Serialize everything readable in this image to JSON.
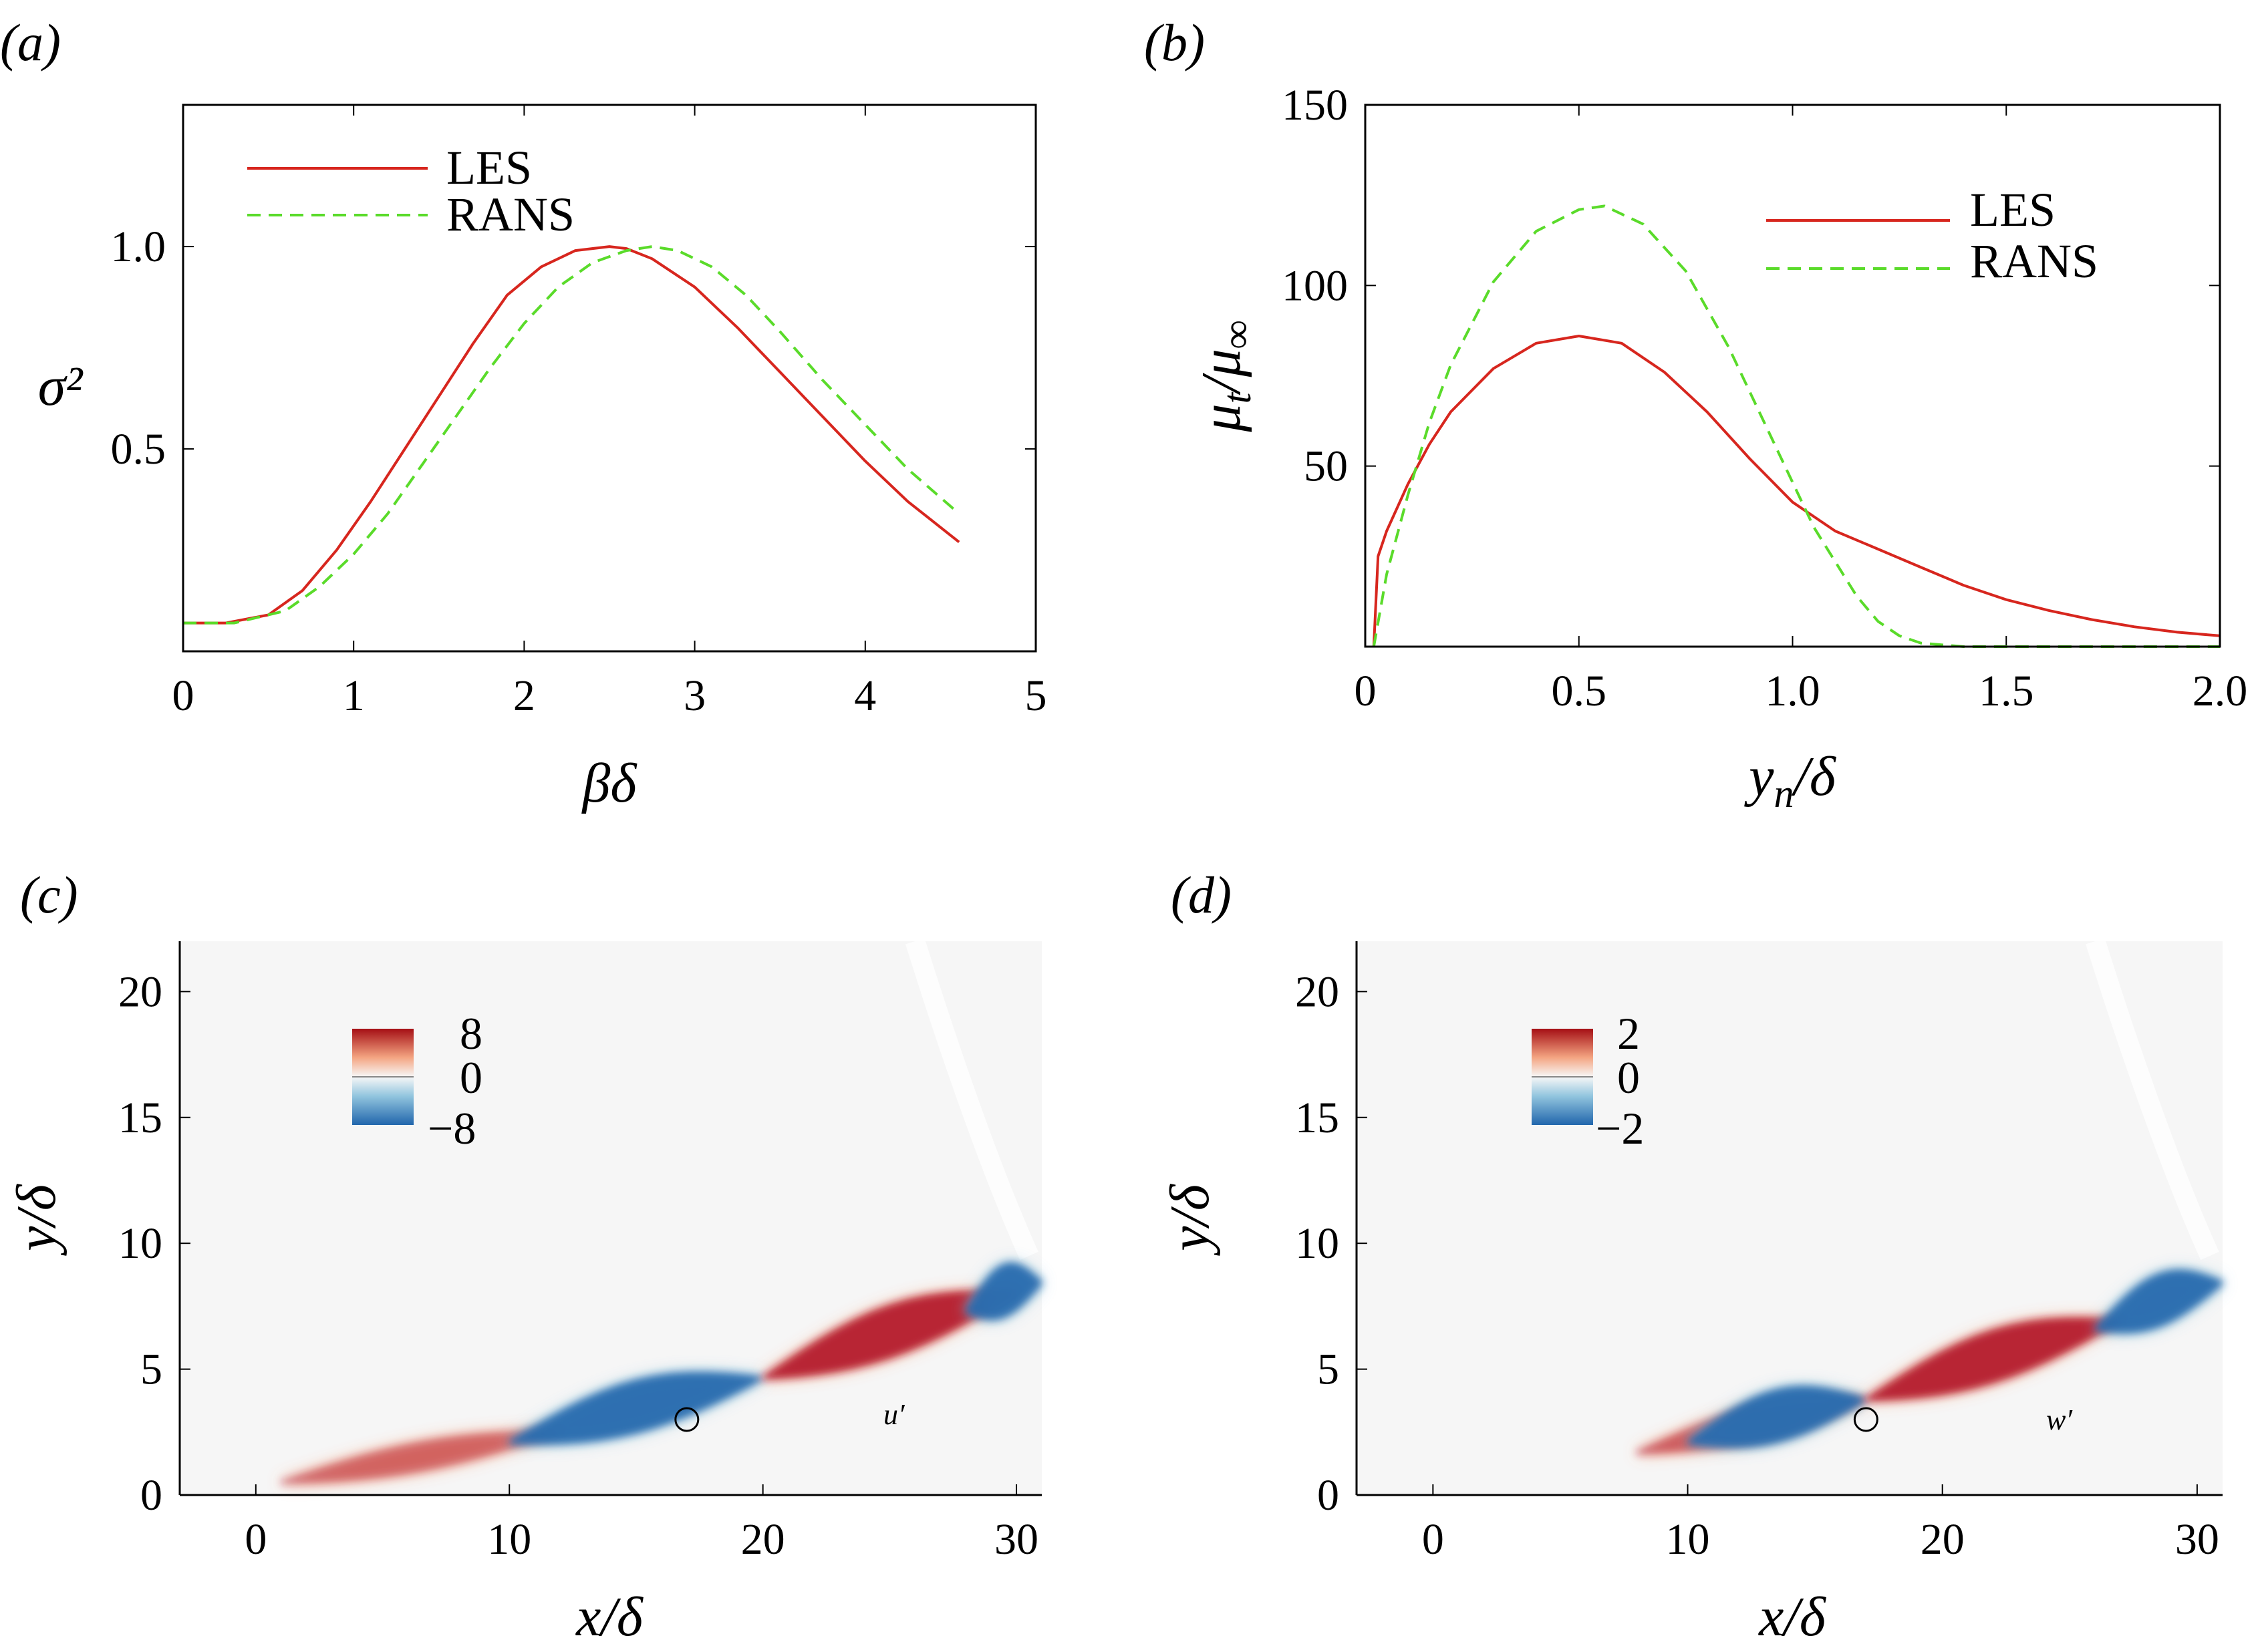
{
  "panel_labels": [
    "(a)",
    "(b)",
    "(c)",
    "(d)"
  ],
  "chart_data": [
    {
      "panel": "(a)",
      "type": "line",
      "xlabel": "βδ",
      "ylabel": "σ²",
      "xlim": [
        0,
        5
      ],
      "ylim": [
        0,
        1.35
      ],
      "xticks": [
        "0",
        "1",
        "2",
        "3",
        "4",
        "5"
      ],
      "yticks": [
        "0.5",
        "1.0"
      ],
      "legend": {
        "placement": "top-left",
        "entries": [
          "LES",
          "RANS"
        ]
      },
      "series": [
        {
          "name": "LES",
          "color": "#d7261e",
          "dash": "solid",
          "x": [
            0,
            0.25,
            0.5,
            0.7,
            0.9,
            1.1,
            1.3,
            1.5,
            1.7,
            1.9,
            2.1,
            2.3,
            2.5,
            2.6,
            2.75,
            3.0,
            3.25,
            3.5,
            3.75,
            4.0,
            4.25,
            4.55
          ],
          "y": [
            0.07,
            0.07,
            0.09,
            0.15,
            0.25,
            0.37,
            0.5,
            0.63,
            0.76,
            0.88,
            0.95,
            0.99,
            1.0,
            0.995,
            0.97,
            0.9,
            0.8,
            0.69,
            0.58,
            0.47,
            0.37,
            0.27
          ]
        },
        {
          "name": "RANS",
          "color": "#5adb2a",
          "dash": "dashed",
          "x": [
            0,
            0.3,
            0.6,
            0.8,
            1.0,
            1.2,
            1.4,
            1.6,
            1.8,
            2.0,
            2.2,
            2.4,
            2.6,
            2.75,
            2.9,
            3.1,
            3.3,
            3.5,
            3.75,
            4.0,
            4.25,
            4.55
          ],
          "y": [
            0.07,
            0.07,
            0.1,
            0.16,
            0.24,
            0.34,
            0.46,
            0.58,
            0.7,
            0.81,
            0.9,
            0.96,
            0.99,
            1.0,
            0.99,
            0.95,
            0.88,
            0.79,
            0.67,
            0.56,
            0.45,
            0.34
          ]
        }
      ]
    },
    {
      "panel": "(b)",
      "type": "line",
      "xlabel": "yₙ/δ",
      "ylabel": "μt/μ∞",
      "xlim": [
        0,
        2.0
      ],
      "ylim": [
        0,
        150
      ],
      "xticks": [
        "0",
        "0.5",
        "1.0",
        "1.5",
        "2.0"
      ],
      "yticks": [
        "50",
        "100",
        "150"
      ],
      "legend": {
        "placement": "top-right",
        "entries": [
          "LES",
          "RANS"
        ]
      },
      "series": [
        {
          "name": "LES",
          "color": "#d7261e",
          "dash": "solid",
          "x": [
            0.02,
            0.03,
            0.05,
            0.1,
            0.15,
            0.2,
            0.3,
            0.4,
            0.5,
            0.6,
            0.7,
            0.8,
            0.9,
            1.0,
            1.1,
            1.2,
            1.3,
            1.4,
            1.5,
            1.6,
            1.7,
            1.8,
            1.9,
            2.0
          ],
          "y": [
            0,
            25,
            32,
            45,
            56,
            65,
            77,
            84,
            86,
            84,
            76,
            65,
            52,
            40,
            32,
            27,
            22,
            17,
            13,
            10,
            7.5,
            5.5,
            4,
            3
          ]
        },
        {
          "name": "RANS",
          "color": "#5adb2a",
          "dash": "dashed",
          "x": [
            0.02,
            0.05,
            0.1,
            0.15,
            0.2,
            0.3,
            0.4,
            0.5,
            0.56,
            0.65,
            0.75,
            0.85,
            0.95,
            1.05,
            1.15,
            1.2,
            1.25,
            1.3,
            1.4,
            1.6,
            2.0
          ],
          "y": [
            0,
            20,
            42,
            62,
            78,
            101,
            115,
            121,
            122,
            117,
            104,
            83,
            58,
            33,
            14,
            7,
            3,
            1,
            0,
            0,
            0
          ]
        }
      ]
    },
    {
      "panel": "(c)",
      "type": "heatmap",
      "field_label": "u′",
      "xlabel": "x/δ",
      "ylabel": "y/δ",
      "xlim": [
        -3,
        31
      ],
      "ylim": [
        0,
        22
      ],
      "xticks": [
        "0",
        "10",
        "20",
        "30"
      ],
      "yticks": [
        "0",
        "5",
        "10",
        "15",
        "20"
      ],
      "colorbar": {
        "labels": [
          "8",
          "0",
          "−8"
        ],
        "min": -8,
        "max": 8
      },
      "marker": {
        "x": 17,
        "y": 3
      },
      "structures": [
        {
          "sign": "pos",
          "x": [
            1,
            12
          ],
          "strength": 0.35
        },
        {
          "sign": "neg",
          "x": [
            10,
            20
          ],
          "strength": 1.0
        },
        {
          "sign": "pos",
          "x": [
            20,
            30
          ],
          "strength": 1.0
        },
        {
          "sign": "neg",
          "x": [
            28,
            31
          ],
          "strength": 1.0
        }
      ]
    },
    {
      "panel": "(d)",
      "type": "heatmap",
      "field_label": "w′",
      "xlabel": "x/δ",
      "ylabel": "y/δ",
      "xlim": [
        -3,
        31
      ],
      "ylim": [
        0,
        22
      ],
      "xticks": [
        "0",
        "10",
        "20",
        "30"
      ],
      "yticks": [
        "0",
        "5",
        "10",
        "15",
        "20"
      ],
      "colorbar": {
        "labels": [
          "2",
          "0",
          "−2"
        ],
        "min": -2,
        "max": 2
      },
      "marker": {
        "x": 17,
        "y": 3
      },
      "structures": [
        {
          "sign": "pos",
          "x": [
            8,
            17
          ],
          "strength": 0.45
        },
        {
          "sign": "neg",
          "x": [
            10,
            17
          ],
          "strength": 1.0
        },
        {
          "sign": "pos",
          "x": [
            17,
            27
          ],
          "strength": 1.0
        },
        {
          "sign": "neg",
          "x": [
            26,
            31
          ],
          "strength": 1.0
        }
      ]
    }
  ]
}
